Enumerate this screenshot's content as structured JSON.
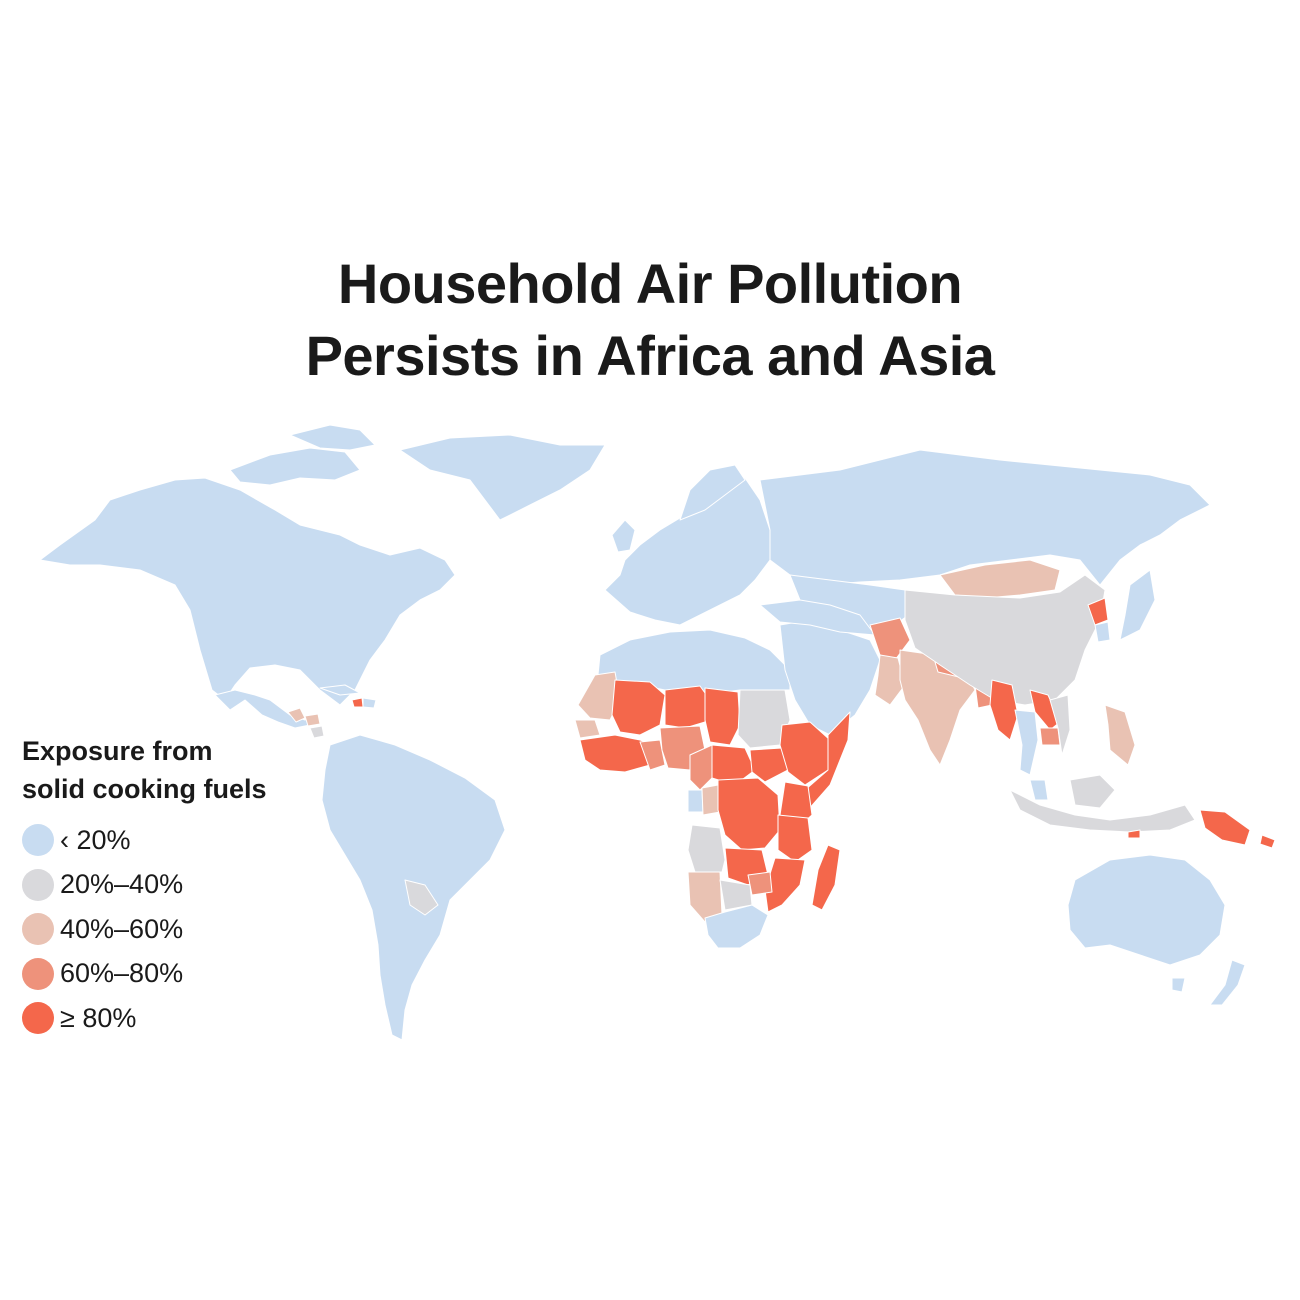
{
  "title": {
    "line1": "Household Air Pollution",
    "line2": "Persists in Africa and Asia"
  },
  "legend": {
    "title_line1": "Exposure from",
    "title_line2": "solid cooking fuels",
    "items": [
      {
        "label": "‹ 20%",
        "color": "#c8dcf1"
      },
      {
        "label": "20%–40%",
        "color": "#d9d9dc"
      },
      {
        "label": "40%–60%",
        "color": "#e9c2b3"
      },
      {
        "label": "60%–80%",
        "color": "#ee927b"
      },
      {
        "label": "≥ 80%",
        "color": "#f4674b"
      }
    ]
  },
  "chart_data": {
    "type": "choropleth",
    "title": "Household Air Pollution Persists in Africa and Asia",
    "legend_title": "Exposure from solid cooking fuels",
    "legend_placement": "left",
    "classes": [
      "‹ 20%",
      "20%–40%",
      "40%–60%",
      "60%–80%",
      "≥ 80%"
    ],
    "regions": [
      {
        "name": "North America",
        "class": 0
      },
      {
        "name": "Greenland",
        "class": 0
      },
      {
        "name": "Mexico",
        "class": 0
      },
      {
        "name": "Guatemala",
        "class": 2
      },
      {
        "name": "Honduras",
        "class": 2
      },
      {
        "name": "Nicaragua",
        "class": 1
      },
      {
        "name": "Haiti",
        "class": 4
      },
      {
        "name": "South America",
        "class": 0
      },
      {
        "name": "Paraguay",
        "class": 1
      },
      {
        "name": "Europe",
        "class": 0
      },
      {
        "name": "Russia",
        "class": 0
      },
      {
        "name": "Middle East",
        "class": 0
      },
      {
        "name": "North Africa",
        "class": 0
      },
      {
        "name": "Mauritania",
        "class": 2
      },
      {
        "name": "Mali",
        "class": 4
      },
      {
        "name": "Niger",
        "class": 4
      },
      {
        "name": "Chad",
        "class": 4
      },
      {
        "name": "Sudan",
        "class": 1
      },
      {
        "name": "Senegal",
        "class": 2
      },
      {
        "name": "West Africa coast",
        "class": 4
      },
      {
        "name": "Ghana / Togo",
        "class": 3
      },
      {
        "name": "Nigeria",
        "class": 3
      },
      {
        "name": "Cameroon",
        "class": 3
      },
      {
        "name": "Central African Republic",
        "class": 4
      },
      {
        "name": "South Sudan",
        "class": 4
      },
      {
        "name": "Ethiopia",
        "class": 4
      },
      {
        "name": "Somalia",
        "class": 4
      },
      {
        "name": "Kenya",
        "class": 4
      },
      {
        "name": "Gabon",
        "class": 0
      },
      {
        "name": "Congo",
        "class": 2
      },
      {
        "name": "DR Congo",
        "class": 4
      },
      {
        "name": "Tanzania",
        "class": 4
      },
      {
        "name": "Angola",
        "class": 1
      },
      {
        "name": "Zambia",
        "class": 4
      },
      {
        "name": "Mozambique",
        "class": 4
      },
      {
        "name": "Zimbabwe",
        "class": 3
      },
      {
        "name": "Namibia",
        "class": 2
      },
      {
        "name": "Botswana",
        "class": 1
      },
      {
        "name": "South Africa",
        "class": 0
      },
      {
        "name": "Madagascar",
        "class": 4
      },
      {
        "name": "Mongolia",
        "class": 2
      },
      {
        "name": "China",
        "class": 1
      },
      {
        "name": "North Korea",
        "class": 4
      },
      {
        "name": "South Korea / Japan",
        "class": 0
      },
      {
        "name": "Afghanistan",
        "class": 3
      },
      {
        "name": "Pakistan",
        "class": 2
      },
      {
        "name": "India",
        "class": 2
      },
      {
        "name": "Nepal",
        "class": 3
      },
      {
        "name": "Bangladesh",
        "class": 3
      },
      {
        "name": "Myanmar",
        "class": 4
      },
      {
        "name": "Thailand",
        "class": 0
      },
      {
        "name": "Laos",
        "class": 4
      },
      {
        "name": "Cambodia",
        "class": 3
      },
      {
        "name": "Vietnam",
        "class": 1
      },
      {
        "name": "Philippines",
        "class": 2
      },
      {
        "name": "Indonesia",
        "class": 1
      },
      {
        "name": "Timor-Leste",
        "class": 4
      },
      {
        "name": "Papua New Guinea",
        "class": 4
      },
      {
        "name": "Solomon Islands",
        "class": 4
      },
      {
        "name": "Australia",
        "class": 0
      },
      {
        "name": "New Zealand",
        "class": 0
      }
    ]
  }
}
